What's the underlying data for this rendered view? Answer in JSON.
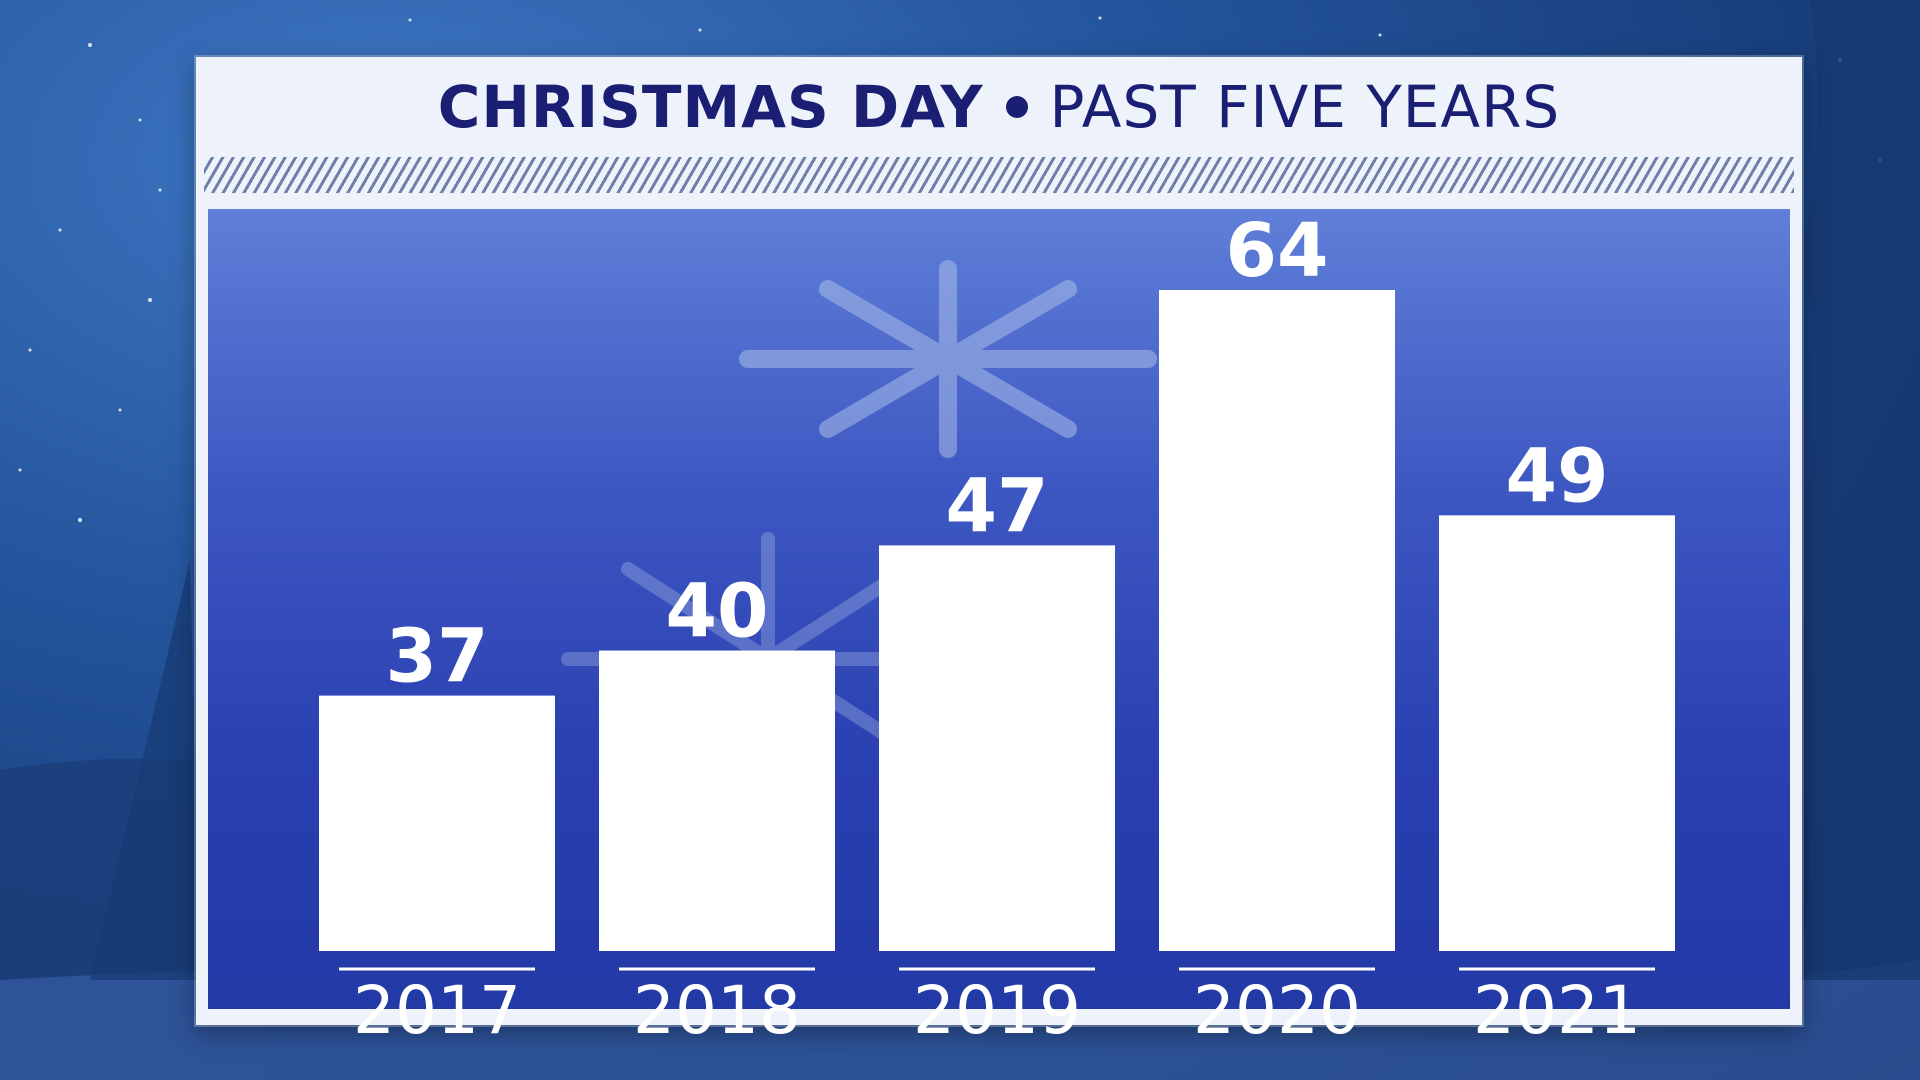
{
  "title": {
    "bold": "CHRISTMAS DAY",
    "light": "PAST FIVE YEARS"
  },
  "colors": {
    "title": "#1a1f73",
    "bar": "#ffffff",
    "plot_background": "#2a3fb0"
  },
  "chart_data": {
    "type": "bar",
    "title": "CHRISTMAS DAY • PAST FIVE YEARS",
    "categories": [
      "2017",
      "2018",
      "2019",
      "2020",
      "2021"
    ],
    "values": [
      37,
      40,
      47,
      64,
      49
    ],
    "data_labels": [
      "37",
      "40",
      "47",
      "64",
      "49"
    ],
    "xlabel": "",
    "ylabel": "",
    "ylim": [
      20,
      64
    ],
    "grid": false,
    "legend": "none"
  }
}
